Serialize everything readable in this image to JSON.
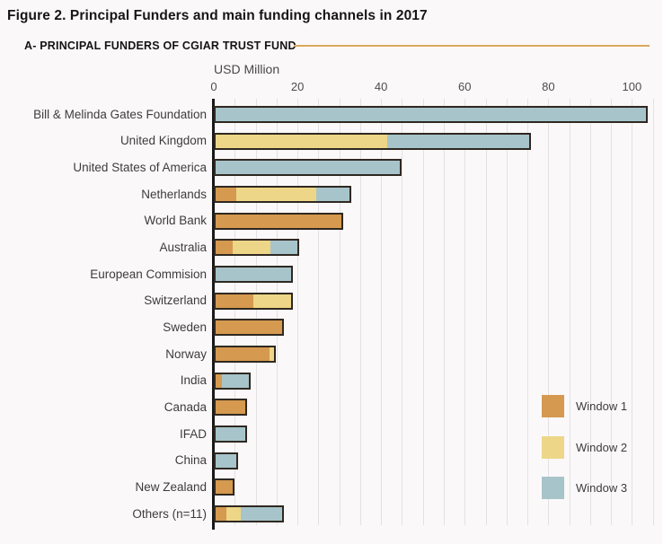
{
  "header": {
    "title": "Figure 2. Principal Funders and main funding channels in 2017",
    "subtitle": "A- PRINCIPAL FUNDERS OF CGIAR TRUST FUND"
  },
  "colors": {
    "page_background": "#fbf8f9",
    "subtitle_rule": "#d9a85c",
    "gridline": "#e4e1e6",
    "axis_line": "#191919",
    "bar_border": "#2f2821",
    "window1": "#d5994f",
    "window2": "#edd687",
    "window3": "#a7c4ca"
  },
  "chart_data": {
    "type": "bar",
    "orientation": "horizontal",
    "stacked": true,
    "title": "Figure 2. Principal Funders and main funding channels in 2017",
    "subtitle": "A- PRINCIPAL FUNDERS OF CGIAR TRUST FUND",
    "xlabel": "USD Million",
    "ylabel": "",
    "x_ticks": [
      0,
      20,
      40,
      60,
      80,
      100
    ],
    "xlim": [
      0,
      107
    ],
    "grid": {
      "show": true,
      "interval": 5
    },
    "legend": {
      "position": "right-inside",
      "entries": [
        {
          "label": "Window 1",
          "color": "#d5994f"
        },
        {
          "label": "Window 2",
          "color": "#edd687"
        },
        {
          "label": "Window 3",
          "color": "#a7c4ca"
        }
      ]
    },
    "categories": [
      "Bill & Melinda Gates Foundation",
      "United Kingdom",
      "United States of America",
      "Netherlands",
      "World Bank",
      "Australia",
      "European Commision",
      "Switzerland",
      "Sweden",
      "Norway",
      "India",
      "Canada",
      "IFAD",
      "China",
      "New Zealand",
      "Others (n=11)"
    ],
    "series": [
      {
        "name": "Window 1",
        "color": "#d5994f",
        "values": [
          0,
          0,
          0,
          5,
          30,
          4,
          0,
          9,
          16,
          13,
          1.5,
          7,
          0,
          0,
          4,
          2.5
        ]
      },
      {
        "name": "Window 2",
        "color": "#edd687",
        "values": [
          0,
          41,
          0,
          19,
          0,
          9,
          0,
          9,
          0,
          1,
          0,
          0,
          0,
          0,
          0,
          3.5
        ]
      },
      {
        "name": "Window 3",
        "color": "#a7c4ca",
        "values": [
          103,
          34,
          44,
          8,
          0,
          6.5,
          18,
          0,
          0,
          0,
          6.5,
          0,
          7,
          5,
          0,
          10
        ]
      }
    ],
    "totals": [
      103,
      75,
      44,
      32,
      30,
      19.5,
      18,
      18,
      16,
      14,
      8,
      7,
      7,
      5,
      4,
      16
    ]
  }
}
